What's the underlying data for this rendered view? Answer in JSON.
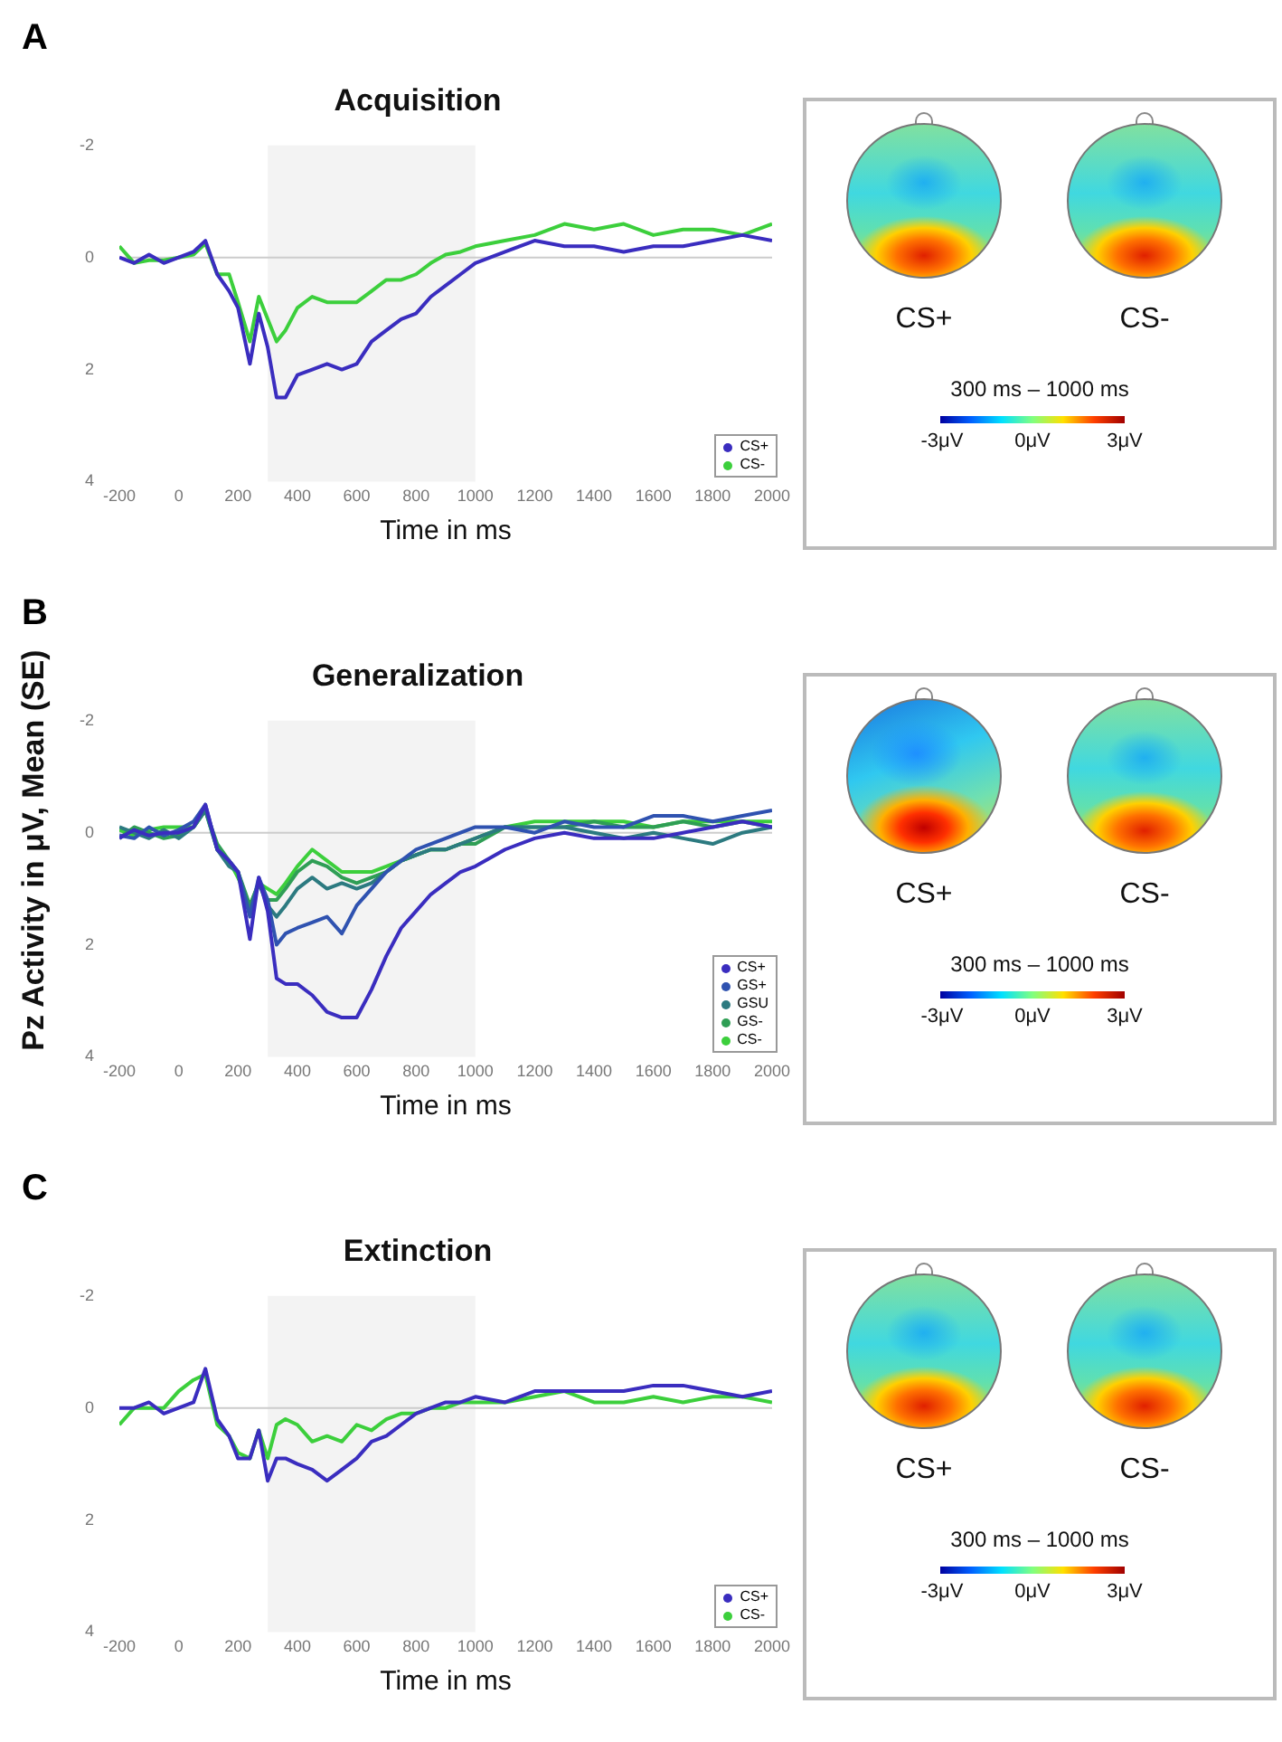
{
  "chart_data": [
    {
      "type": "line",
      "title": "Acquisition",
      "xlabel": "Time in ms",
      "annotations": [
        "A"
      ],
      "xlim": [
        -200,
        2000
      ],
      "ylim": [
        4,
        -2
      ],
      "xticks": [
        -200,
        0,
        200,
        400,
        600,
        800,
        1000,
        1200,
        1400,
        1600,
        1800,
        2000
      ],
      "yticks": [
        -2,
        0,
        2,
        4
      ],
      "grid": false,
      "legend": "bottom right",
      "marker": "none",
      "line_style": "solid",
      "bands": [
        {
          "axis": "x",
          "from": 300,
          "to": 1000,
          "color": "#f3f3f3"
        }
      ],
      "ref_lines": [
        {
          "axis": "y",
          "value": 0,
          "color": "#cccccc"
        }
      ],
      "x": [
        -200,
        -150,
        -100,
        -50,
        0,
        50,
        90,
        130,
        170,
        200,
        240,
        270,
        300,
        330,
        360,
        400,
        450,
        500,
        550,
        600,
        650,
        700,
        750,
        800,
        850,
        900,
        950,
        1000,
        1100,
        1200,
        1300,
        1400,
        1500,
        1600,
        1700,
        1800,
        1900,
        2000
      ],
      "series": [
        {
          "name": "CS+",
          "color": "#3a2dbf",
          "values": [
            0,
            0.1,
            -0.05,
            0.1,
            0,
            -0.1,
            -0.3,
            0.3,
            0.6,
            0.9,
            1.9,
            1.0,
            1.6,
            2.5,
            2.5,
            2.1,
            2.0,
            1.9,
            2.0,
            1.9,
            1.5,
            1.3,
            1.1,
            1.0,
            0.7,
            0.5,
            0.3,
            0.1,
            -0.1,
            -0.3,
            -0.2,
            -0.2,
            -0.1,
            -0.2,
            -0.2,
            -0.3,
            -0.4,
            -0.3
          ]
        },
        {
          "name": "CS-",
          "color": "#3ccf3c",
          "values": [
            -0.2,
            0.1,
            0.05,
            0.05,
            0,
            -0.05,
            -0.25,
            0.3,
            0.3,
            0.8,
            1.5,
            0.7,
            1.1,
            1.5,
            1.3,
            0.9,
            0.7,
            0.8,
            0.8,
            0.8,
            0.6,
            0.4,
            0.4,
            0.3,
            0.1,
            -0.05,
            -0.1,
            -0.2,
            -0.3,
            -0.4,
            -0.6,
            -0.5,
            -0.6,
            -0.4,
            -0.5,
            -0.5,
            -0.4,
            -0.6
          ]
        }
      ]
    },
    {
      "type": "other",
      "annotations": [
        "CS+",
        "CS-",
        "300 ms – 1000 ms",
        "-3μV",
        "0μV",
        "3μV"
      ]
    },
    {
      "type": "line",
      "title": "Generalization",
      "xlabel": "Time in ms",
      "ylabel": "Pz Activity in μV, Mean (SE)",
      "annotations": [
        "B"
      ],
      "xlim": [
        -200,
        2000
      ],
      "ylim": [
        4,
        -2
      ],
      "xticks": [
        -200,
        0,
        200,
        400,
        600,
        800,
        1000,
        1200,
        1400,
        1600,
        1800,
        2000
      ],
      "yticks": [
        -2,
        0,
        2,
        4
      ],
      "grid": false,
      "legend": "bottom right",
      "marker": "none",
      "line_style": "solid",
      "bands": [
        {
          "axis": "x",
          "from": 300,
          "to": 1000,
          "color": "#f3f3f3"
        }
      ],
      "ref_lines": [
        {
          "axis": "y",
          "value": 0,
          "color": "#cccccc"
        }
      ],
      "x": [
        -200,
        -150,
        -100,
        -50,
        0,
        50,
        90,
        130,
        170,
        200,
        240,
        270,
        300,
        330,
        360,
        400,
        450,
        500,
        550,
        600,
        650,
        700,
        750,
        800,
        850,
        900,
        950,
        1000,
        1100,
        1200,
        1300,
        1400,
        1500,
        1600,
        1700,
        1800,
        1900,
        2000
      ],
      "series": [
        {
          "name": "CS+",
          "color": "#3a2dbf",
          "values": [
            0.1,
            -0.05,
            0.05,
            0,
            0,
            -0.1,
            -0.5,
            0.3,
            0.5,
            0.7,
            1.9,
            0.8,
            1.4,
            2.6,
            2.7,
            2.7,
            2.9,
            3.2,
            3.3,
            3.3,
            2.8,
            2.2,
            1.7,
            1.4,
            1.1,
            0.9,
            0.7,
            0.6,
            0.3,
            0.1,
            0,
            0.1,
            0.1,
            0.1,
            0,
            -0.1,
            -0.2,
            -0.1
          ]
        },
        {
          "name": "GS+",
          "color": "#2f52b0",
          "values": [
            0.05,
            0.1,
            -0.1,
            0.05,
            -0.05,
            -0.2,
            -0.5,
            0.3,
            0.5,
            0.7,
            1.5,
            0.8,
            1.2,
            2.0,
            1.8,
            1.7,
            1.6,
            1.5,
            1.8,
            1.3,
            1.0,
            0.7,
            0.5,
            0.3,
            0.2,
            0.1,
            0,
            -0.1,
            -0.1,
            0,
            -0.2,
            -0.1,
            -0.1,
            -0.3,
            -0.3,
            -0.2,
            -0.3,
            -0.4
          ]
        },
        {
          "name": "GSU",
          "color": "#2c7a80",
          "values": [
            -0.1,
            0,
            0.1,
            -0.05,
            0.1,
            -0.1,
            -0.4,
            0.3,
            0.6,
            0.7,
            1.4,
            0.9,
            1.3,
            1.5,
            1.3,
            1.0,
            0.8,
            1.0,
            0.9,
            1.0,
            0.9,
            0.7,
            0.5,
            0.4,
            0.3,
            0.3,
            0.2,
            0.1,
            -0.1,
            -0.1,
            -0.1,
            0,
            0.1,
            0,
            0.1,
            0.2,
            0,
            -0.1
          ]
        },
        {
          "name": "GS-",
          "color": "#2f9e55",
          "values": [
            0.1,
            -0.1,
            0,
            0.1,
            0.05,
            -0.1,
            -0.4,
            0.2,
            0.5,
            0.7,
            1.3,
            0.9,
            1.2,
            1.2,
            1.0,
            0.7,
            0.5,
            0.6,
            0.8,
            0.9,
            0.8,
            0.7,
            0.5,
            0.4,
            0.3,
            0.3,
            0.2,
            0.2,
            -0.1,
            -0.1,
            -0.1,
            -0.2,
            -0.1,
            -0.1,
            -0.2,
            -0.1,
            -0.2,
            -0.1
          ]
        },
        {
          "name": "CS-",
          "color": "#3ccf3c",
          "values": [
            -0.05,
            0.05,
            -0.05,
            -0.1,
            -0.1,
            -0.1,
            -0.4,
            0.3,
            0.5,
            0.8,
            1.3,
            0.9,
            1.0,
            1.1,
            0.9,
            0.6,
            0.3,
            0.5,
            0.7,
            0.7,
            0.7,
            0.6,
            0.5,
            0.4,
            0.3,
            0.3,
            0.2,
            0.1,
            -0.1,
            -0.2,
            -0.2,
            -0.2,
            -0.2,
            -0.1,
            -0.2,
            -0.2,
            -0.2,
            -0.2
          ]
        }
      ]
    },
    {
      "type": "other",
      "annotations": [
        "CS+",
        "CS-",
        "300 ms – 1000 ms",
        "-3μV",
        "0μV",
        "3μV"
      ]
    },
    {
      "type": "line",
      "title": "Extinction",
      "xlabel": "Time in ms",
      "annotations": [
        "C"
      ],
      "xlim": [
        -200,
        2000
      ],
      "ylim": [
        4,
        -2
      ],
      "xticks": [
        -200,
        0,
        200,
        400,
        600,
        800,
        1000,
        1200,
        1400,
        1600,
        1800,
        2000
      ],
      "yticks": [
        -2,
        0,
        2,
        4
      ],
      "grid": false,
      "legend": "bottom right",
      "marker": "none",
      "line_style": "solid",
      "bands": [
        {
          "axis": "x",
          "from": 300,
          "to": 1000,
          "color": "#f3f3f3"
        }
      ],
      "ref_lines": [
        {
          "axis": "y",
          "value": 0,
          "color": "#cccccc"
        }
      ],
      "x": [
        -200,
        -150,
        -100,
        -50,
        0,
        50,
        90,
        130,
        170,
        200,
        240,
        270,
        300,
        330,
        360,
        400,
        450,
        500,
        550,
        600,
        650,
        700,
        750,
        800,
        850,
        900,
        950,
        1000,
        1100,
        1200,
        1300,
        1400,
        1500,
        1600,
        1700,
        1800,
        1900,
        2000
      ],
      "series": [
        {
          "name": "CS+",
          "color": "#3a2dbf",
          "values": [
            0,
            0,
            -0.1,
            0.1,
            0,
            -0.1,
            -0.7,
            0.2,
            0.5,
            0.9,
            0.9,
            0.4,
            1.3,
            0.9,
            0.9,
            1.0,
            1.1,
            1.3,
            1.1,
            0.9,
            0.6,
            0.5,
            0.3,
            0.1,
            0,
            -0.1,
            -0.1,
            -0.2,
            -0.1,
            -0.3,
            -0.3,
            -0.3,
            -0.3,
            -0.4,
            -0.4,
            -0.3,
            -0.2,
            -0.3
          ]
        },
        {
          "name": "CS-",
          "color": "#3ccf3c",
          "values": [
            0.3,
            0,
            0,
            0,
            -0.3,
            -0.5,
            -0.6,
            0.3,
            0.5,
            0.8,
            0.9,
            0.4,
            0.9,
            0.3,
            0.2,
            0.3,
            0.6,
            0.5,
            0.6,
            0.3,
            0.4,
            0.2,
            0.1,
            0.1,
            0,
            0,
            -0.1,
            -0.1,
            -0.1,
            -0.2,
            -0.3,
            -0.1,
            -0.1,
            -0.2,
            -0.1,
            -0.2,
            -0.2,
            -0.1
          ]
        }
      ]
    },
    {
      "type": "other",
      "annotations": [
        "CS+",
        "CS-",
        "300 ms – 1000 ms",
        "-3μV",
        "0μV",
        "3μV"
      ]
    }
  ]
}
